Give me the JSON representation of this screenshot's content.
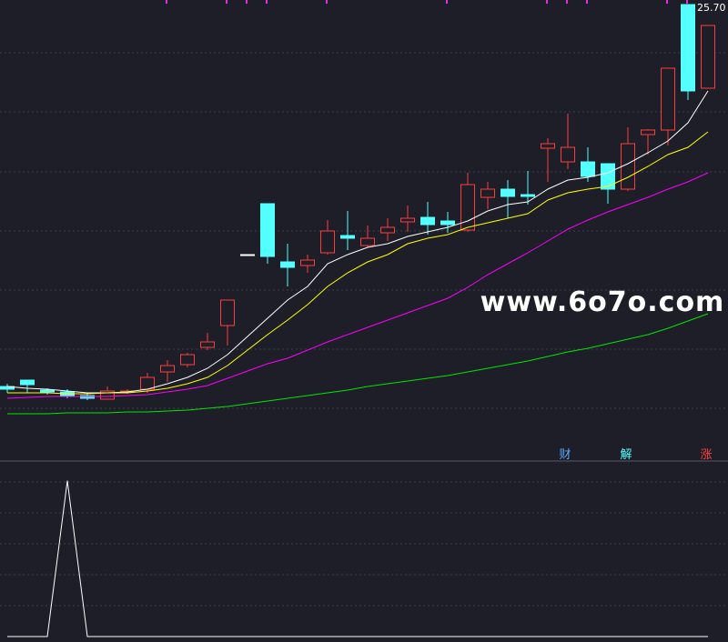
{
  "chart_data": [
    {
      "type": "candlestick",
      "open": [
        13.1,
        13.31,
        12.98,
        12.92,
        12.8,
        12.68,
        12.92,
        13.01,
        13.58,
        13.82,
        14.39,
        15.11,
        17.45,
        19.13,
        17.21,
        17.09,
        17.51,
        18.08,
        17.75,
        18.17,
        18.53,
        18.68,
        18.56,
        18.26,
        19.34,
        19.61,
        19.43,
        20.96,
        20.51,
        20.51,
        20.45,
        19.61,
        21.41,
        21.56,
        25.7,
        22.94
      ],
      "high": [
        13.19,
        13.31,
        13.04,
        13.01,
        12.86,
        13.1,
        13.01,
        13.55,
        13.97,
        14.21,
        14.87,
        15.95,
        17.45,
        19.13,
        17.81,
        17.45,
        18.59,
        18.89,
        18.41,
        18.65,
        19.07,
        19.19,
        18.86,
        20.15,
        19.85,
        19.91,
        20.21,
        21.29,
        22.1,
        20.99,
        20.45,
        21.65,
        21.59,
        23.6,
        25.7,
        25.01
      ],
      "low": [
        12.89,
        12.89,
        12.83,
        12.71,
        12.65,
        12.68,
        12.86,
        12.89,
        13.25,
        13.73,
        14.3,
        14.45,
        17.45,
        17.15,
        16.4,
        16.85,
        17.45,
        17.6,
        17.69,
        17.9,
        18.2,
        18.11,
        18.17,
        18.2,
        18.95,
        18.65,
        19.1,
        19.85,
        20.27,
        19.85,
        19.13,
        19.55,
        20.75,
        21.05,
        22.55,
        22.94
      ],
      "close": [
        13.01,
        13.16,
        12.92,
        12.77,
        12.71,
        12.95,
        12.95,
        13.4,
        13.79,
        14.15,
        14.57,
        15.95,
        17.45,
        17.39,
        17.03,
        17.27,
        18.23,
        17.99,
        17.99,
        18.35,
        18.65,
        18.44,
        18.44,
        19.76,
        19.61,
        19.37,
        19.37,
        21.11,
        20.99,
        20.03,
        19.61,
        21.11,
        21.56,
        23.6,
        22.85,
        25.01
      ],
      "up_color": "#ff3c3c",
      "down_color": "#54ffff",
      "flat_color": "#ffffff",
      "series": [
        {
          "color": "#ffffff",
          "values": [
            13.1,
            13.04,
            13.01,
            12.95,
            12.89,
            12.89,
            12.92,
            13.01,
            13.19,
            13.4,
            13.7,
            14.15,
            14.75,
            15.35,
            15.95,
            16.4,
            17.15,
            17.45,
            17.69,
            17.81,
            18.05,
            18.2,
            18.35,
            18.56,
            18.89,
            19.1,
            19.19,
            19.61,
            19.91,
            20.0,
            20.15,
            20.45,
            20.81,
            21.2,
            21.8,
            22.85
          ]
        },
        {
          "color": "#ffff00",
          "values": [
            12.89,
            12.89,
            12.89,
            12.86,
            12.86,
            12.89,
            12.89,
            12.95,
            13.04,
            13.19,
            13.4,
            13.79,
            14.3,
            14.81,
            15.29,
            15.8,
            16.4,
            16.85,
            17.21,
            17.45,
            17.81,
            17.99,
            18.11,
            18.35,
            18.5,
            18.65,
            18.8,
            19.25,
            19.49,
            19.61,
            19.7,
            20.0,
            20.36,
            20.75,
            20.99,
            21.5
          ]
        },
        {
          "color": "#ff00ff",
          "values": [
            12.71,
            12.74,
            12.77,
            12.77,
            12.77,
            12.77,
            12.8,
            12.83,
            12.92,
            13.01,
            13.13,
            13.37,
            13.61,
            13.85,
            14.03,
            14.3,
            14.57,
            14.81,
            15.05,
            15.29,
            15.53,
            15.77,
            16.01,
            16.37,
            16.79,
            17.15,
            17.51,
            17.9,
            18.29,
            18.59,
            18.86,
            19.1,
            19.34,
            19.61,
            19.85,
            20.15
          ]
        },
        {
          "color": "#00e600",
          "values": [
            12.2,
            12.2,
            12.2,
            12.23,
            12.23,
            12.23,
            12.26,
            12.26,
            12.29,
            12.32,
            12.38,
            12.44,
            12.53,
            12.62,
            12.71,
            12.8,
            12.89,
            12.98,
            13.1,
            13.19,
            13.28,
            13.37,
            13.46,
            13.58,
            13.7,
            13.82,
            13.94,
            14.09,
            14.24,
            14.36,
            14.51,
            14.66,
            14.81,
            15.02,
            15.26,
            15.5
          ]
        }
      ],
      "ylim": [
        10.7,
        25.85
      ],
      "high_label": "25.70",
      "watermark": "www.6o7o.com",
      "markers": [
        {
          "text": "财",
          "color": "#5aa8ff"
        },
        {
          "text": "解",
          "color": "#54ffff"
        },
        {
          "text": "涨",
          "color": "#ff4040"
        }
      ]
    },
    {
      "type": "line",
      "series": [
        {
          "color": "#ffffff",
          "values": [
            0,
            0,
            0,
            1,
            0,
            0,
            0,
            0,
            0,
            0,
            0,
            0,
            0,
            0,
            0,
            0,
            0,
            0,
            0,
            0,
            0,
            0,
            0,
            0,
            0,
            0,
            0,
            0,
            0,
            0,
            0,
            0,
            0,
            0,
            0,
            0
          ]
        }
      ],
      "ylim": [
        0,
        1.12
      ]
    }
  ]
}
